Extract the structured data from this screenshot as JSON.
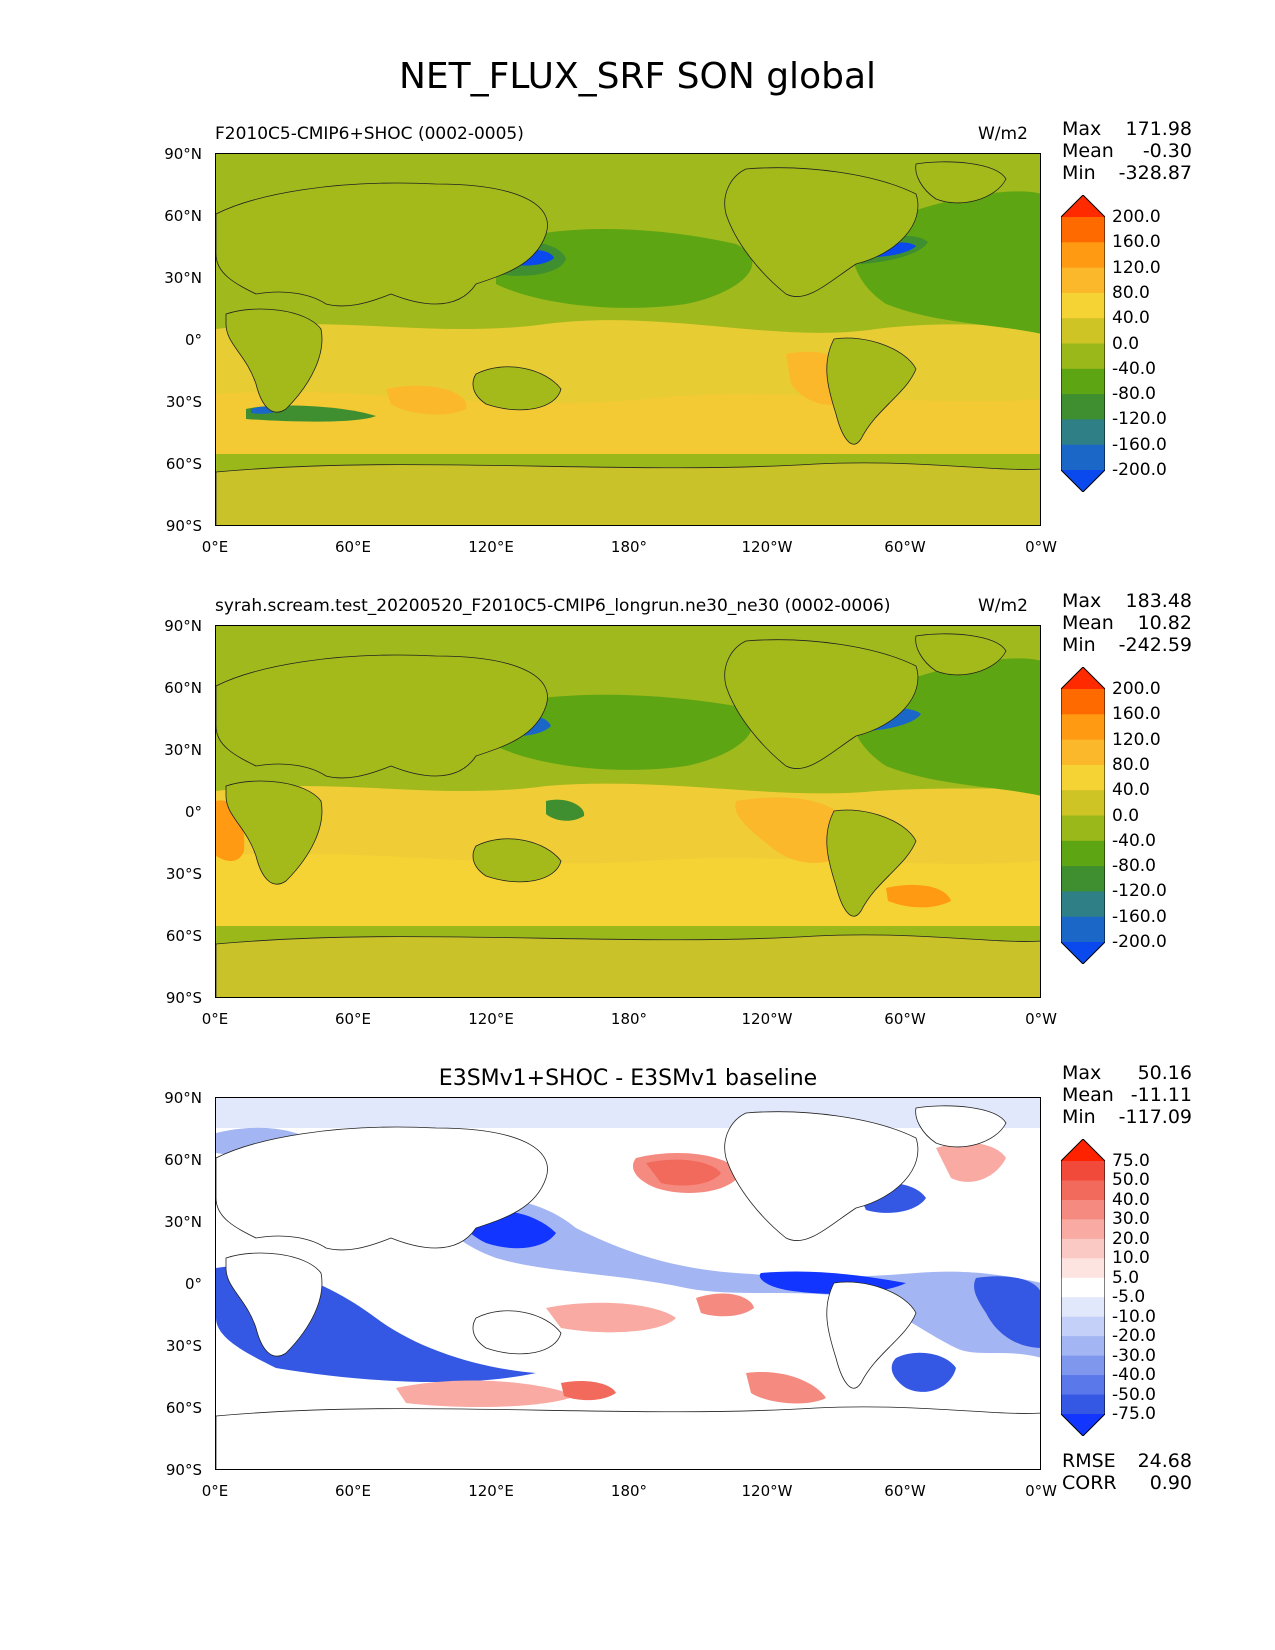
{
  "title": "NET_FLUX_SRF SON global",
  "axes": {
    "lat_ticks": [
      "90°N",
      "60°N",
      "30°N",
      "0°",
      "30°S",
      "60°S",
      "90°S"
    ],
    "lon_ticks": [
      "0°E",
      "60°E",
      "120°E",
      "180°",
      "120°W",
      "60°W",
      "0°W"
    ]
  },
  "panels": [
    {
      "left_title": "F2010C5-CMIP6+SHOC (0002-0005)",
      "units": "W/m2",
      "stats": {
        "max_label": "Max",
        "max": "171.98",
        "mean_label": "Mean",
        "mean": "-0.30",
        "min_label": "Min",
        "min": "-328.87"
      },
      "colorbar": {
        "labels": [
          "200.0",
          "160.0",
          "120.0",
          "80.0",
          "40.0",
          "0.0",
          "-40.0",
          "-80.0",
          "-120.0",
          "-160.0",
          "-200.0"
        ],
        "colors": [
          "#ff2a00",
          "#ff6a00",
          "#ff9a12",
          "#fbb82a",
          "#f6d334",
          "#cfc426",
          "#9ab81a",
          "#5ea514",
          "#3f8f30",
          "#2e7f86",
          "#1a67c8",
          "#0a49ee"
        ]
      }
    },
    {
      "left_title": "syrah.scream.test_20200520_F2010C5-CMIP6_longrun.ne30_ne30 (0002-0006)",
      "units": "W/m2",
      "stats": {
        "max_label": "Max",
        "max": "183.48",
        "mean_label": "Mean",
        "mean": "10.82",
        "min_label": "Min",
        "min": "-242.59"
      },
      "colorbar": {
        "labels": [
          "200.0",
          "160.0",
          "120.0",
          "80.0",
          "40.0",
          "0.0",
          "-40.0",
          "-80.0",
          "-120.0",
          "-160.0",
          "-200.0"
        ],
        "colors": [
          "#ff2a00",
          "#ff6a00",
          "#ff9a12",
          "#fbb82a",
          "#f6d334",
          "#cfc426",
          "#9ab81a",
          "#5ea514",
          "#3f8f30",
          "#2e7f86",
          "#1a67c8",
          "#0a49ee"
        ]
      }
    },
    {
      "center_title": "E3SMv1+SHOC - E3SMv1 baseline",
      "stats": {
        "max_label": "Max",
        "max": "50.16",
        "mean_label": "Mean",
        "mean": "-11.11",
        "min_label": "Min",
        "min": "-117.09"
      },
      "colorbar": {
        "labels": [
          "75.0",
          "50.0",
          "40.0",
          "30.0",
          "20.0",
          "10.0",
          "5.0",
          "-5.0",
          "-10.0",
          "-20.0",
          "-30.0",
          "-40.0",
          "-50.0",
          "-75.0"
        ],
        "colors": [
          "#ff2200",
          "#f14a3a",
          "#f26a5c",
          "#f58a80",
          "#f8aaa3",
          "#fbc9c4",
          "#fde4e1",
          "#ffffff",
          "#e2e8fb",
          "#c4d0f7",
          "#a3b6f3",
          "#7f98ee",
          "#5a78e9",
          "#3457e4",
          "#1235ff"
        ]
      },
      "rmse_label": "RMSE",
      "rmse": "24.68",
      "corr_label": "CORR",
      "corr": "0.90"
    }
  ]
}
